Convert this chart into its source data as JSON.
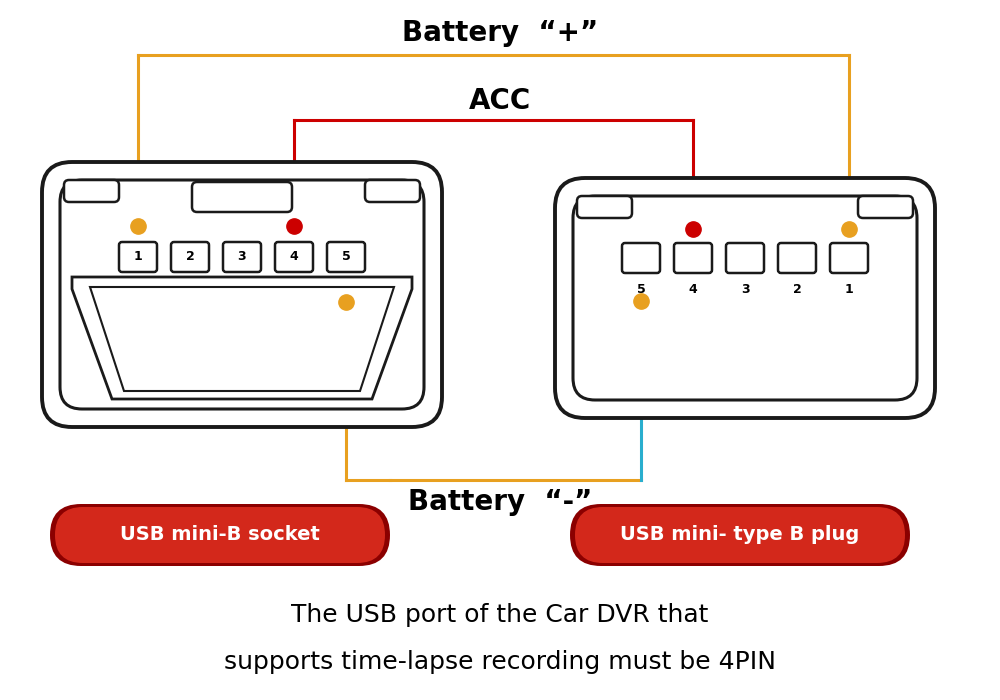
{
  "bg_color": "#ffffff",
  "title_text1": "The USB port of the Car DVR that",
  "title_text2": "supports time-lapse recording must be 4PIN",
  "label_battery_pos": "Battery  “+”",
  "label_acc": "ACC",
  "label_battery_neg": "Battery  “-”",
  "label_left": "USB mini-B socket",
  "label_right": "USB mini- type B plug",
  "orange_color": "#E8A020",
  "red_color": "#CC0000",
  "cyan_color": "#29AECE",
  "line_color": "#1a1a1a",
  "badge_grad_left": "#C0392B",
  "badge_grad_right": "#C0392B",
  "badge_text_color": "#ffffff",
  "lw_conn": 2.8,
  "lw_inner": 2.2,
  "lw_wire": 2.2
}
